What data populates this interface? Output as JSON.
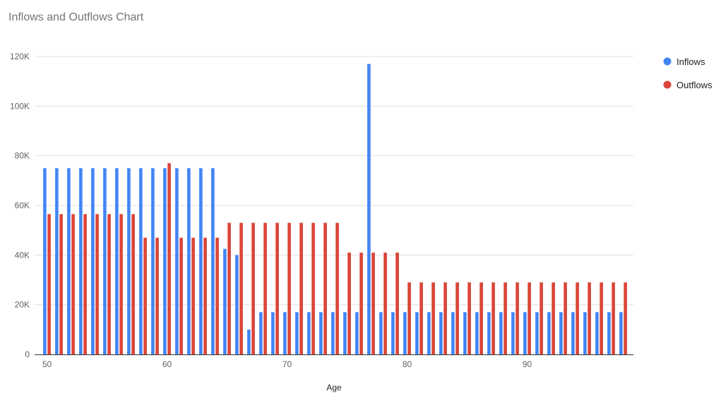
{
  "chart_data": {
    "type": "bar",
    "title": "Inflows and Outflows Chart",
    "xlabel": "Age",
    "ylabel": "",
    "ylim": [
      0,
      120000
    ],
    "y_ticks": [
      0,
      20000,
      40000,
      60000,
      80000,
      100000,
      120000
    ],
    "y_tick_labels": [
      "0",
      "20K",
      "40K",
      "60K",
      "80K",
      "100K",
      "120K"
    ],
    "x_ticks": [
      50,
      60,
      70,
      80,
      90
    ],
    "x_tick_labels": [
      "50",
      "60",
      "70",
      "80",
      "90"
    ],
    "grid": true,
    "legend_position": "right",
    "categories": [
      50,
      51,
      52,
      53,
      54,
      55,
      56,
      57,
      58,
      59,
      60,
      61,
      62,
      63,
      64,
      65,
      66,
      67,
      68,
      69,
      70,
      71,
      72,
      73,
      74,
      75,
      76,
      77,
      78,
      79,
      80,
      81,
      82,
      83,
      84,
      85,
      86,
      87,
      88,
      89,
      90,
      91,
      92,
      93,
      94,
      95,
      96,
      97,
      98
    ],
    "series": [
      {
        "name": "Inflows",
        "color": "#4285f4",
        "values": [
          75000,
          75000,
          75000,
          75000,
          75000,
          75000,
          75000,
          75000,
          75000,
          75000,
          75000,
          75000,
          75000,
          75000,
          75000,
          42500,
          40000,
          10000,
          17000,
          17000,
          17000,
          17000,
          17000,
          17000,
          17000,
          17000,
          17000,
          117000,
          17000,
          17000,
          17000,
          17000,
          17000,
          17000,
          17000,
          17000,
          17000,
          17000,
          17000,
          17000,
          17000,
          17000,
          17000,
          17000,
          17000,
          17000,
          17000,
          17000,
          17000
        ]
      },
      {
        "name": "Outflows",
        "color": "#db4437",
        "values": [
          56500,
          56500,
          56500,
          56500,
          56500,
          56500,
          56500,
          56500,
          47000,
          47000,
          77000,
          47000,
          47000,
          47000,
          47000,
          53000,
          53000,
          53000,
          53000,
          53000,
          53000,
          53000,
          53000,
          53000,
          53000,
          41000,
          41000,
          41000,
          41000,
          41000,
          29000,
          29000,
          29000,
          29000,
          29000,
          29000,
          29000,
          29000,
          29000,
          29000,
          29000,
          29000,
          29000,
          29000,
          29000,
          29000,
          29000,
          29000,
          29000
        ]
      }
    ]
  }
}
